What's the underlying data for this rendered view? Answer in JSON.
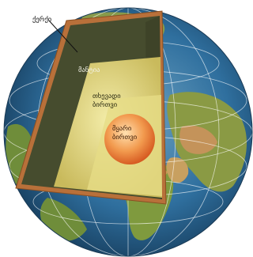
{
  "diagram": {
    "labels": {
      "crust": "ქერქი",
      "mantle": "მანტია",
      "outer_core": "თხევადი ბირთვი",
      "inner_core": "მყარი ბირთვი"
    },
    "colors": {
      "ocean": "#2f6f9e",
      "land": "#7f9a3e",
      "desert": "#c69a52",
      "crust_edge": "#b8703a",
      "mantle": "#464c2e",
      "outer_core_light": "#ece598",
      "outer_core": "#cbbd63",
      "inner_core_light": "#ffd6a0",
      "inner_core": "#e2722e",
      "grid": "#ffffff"
    }
  }
}
